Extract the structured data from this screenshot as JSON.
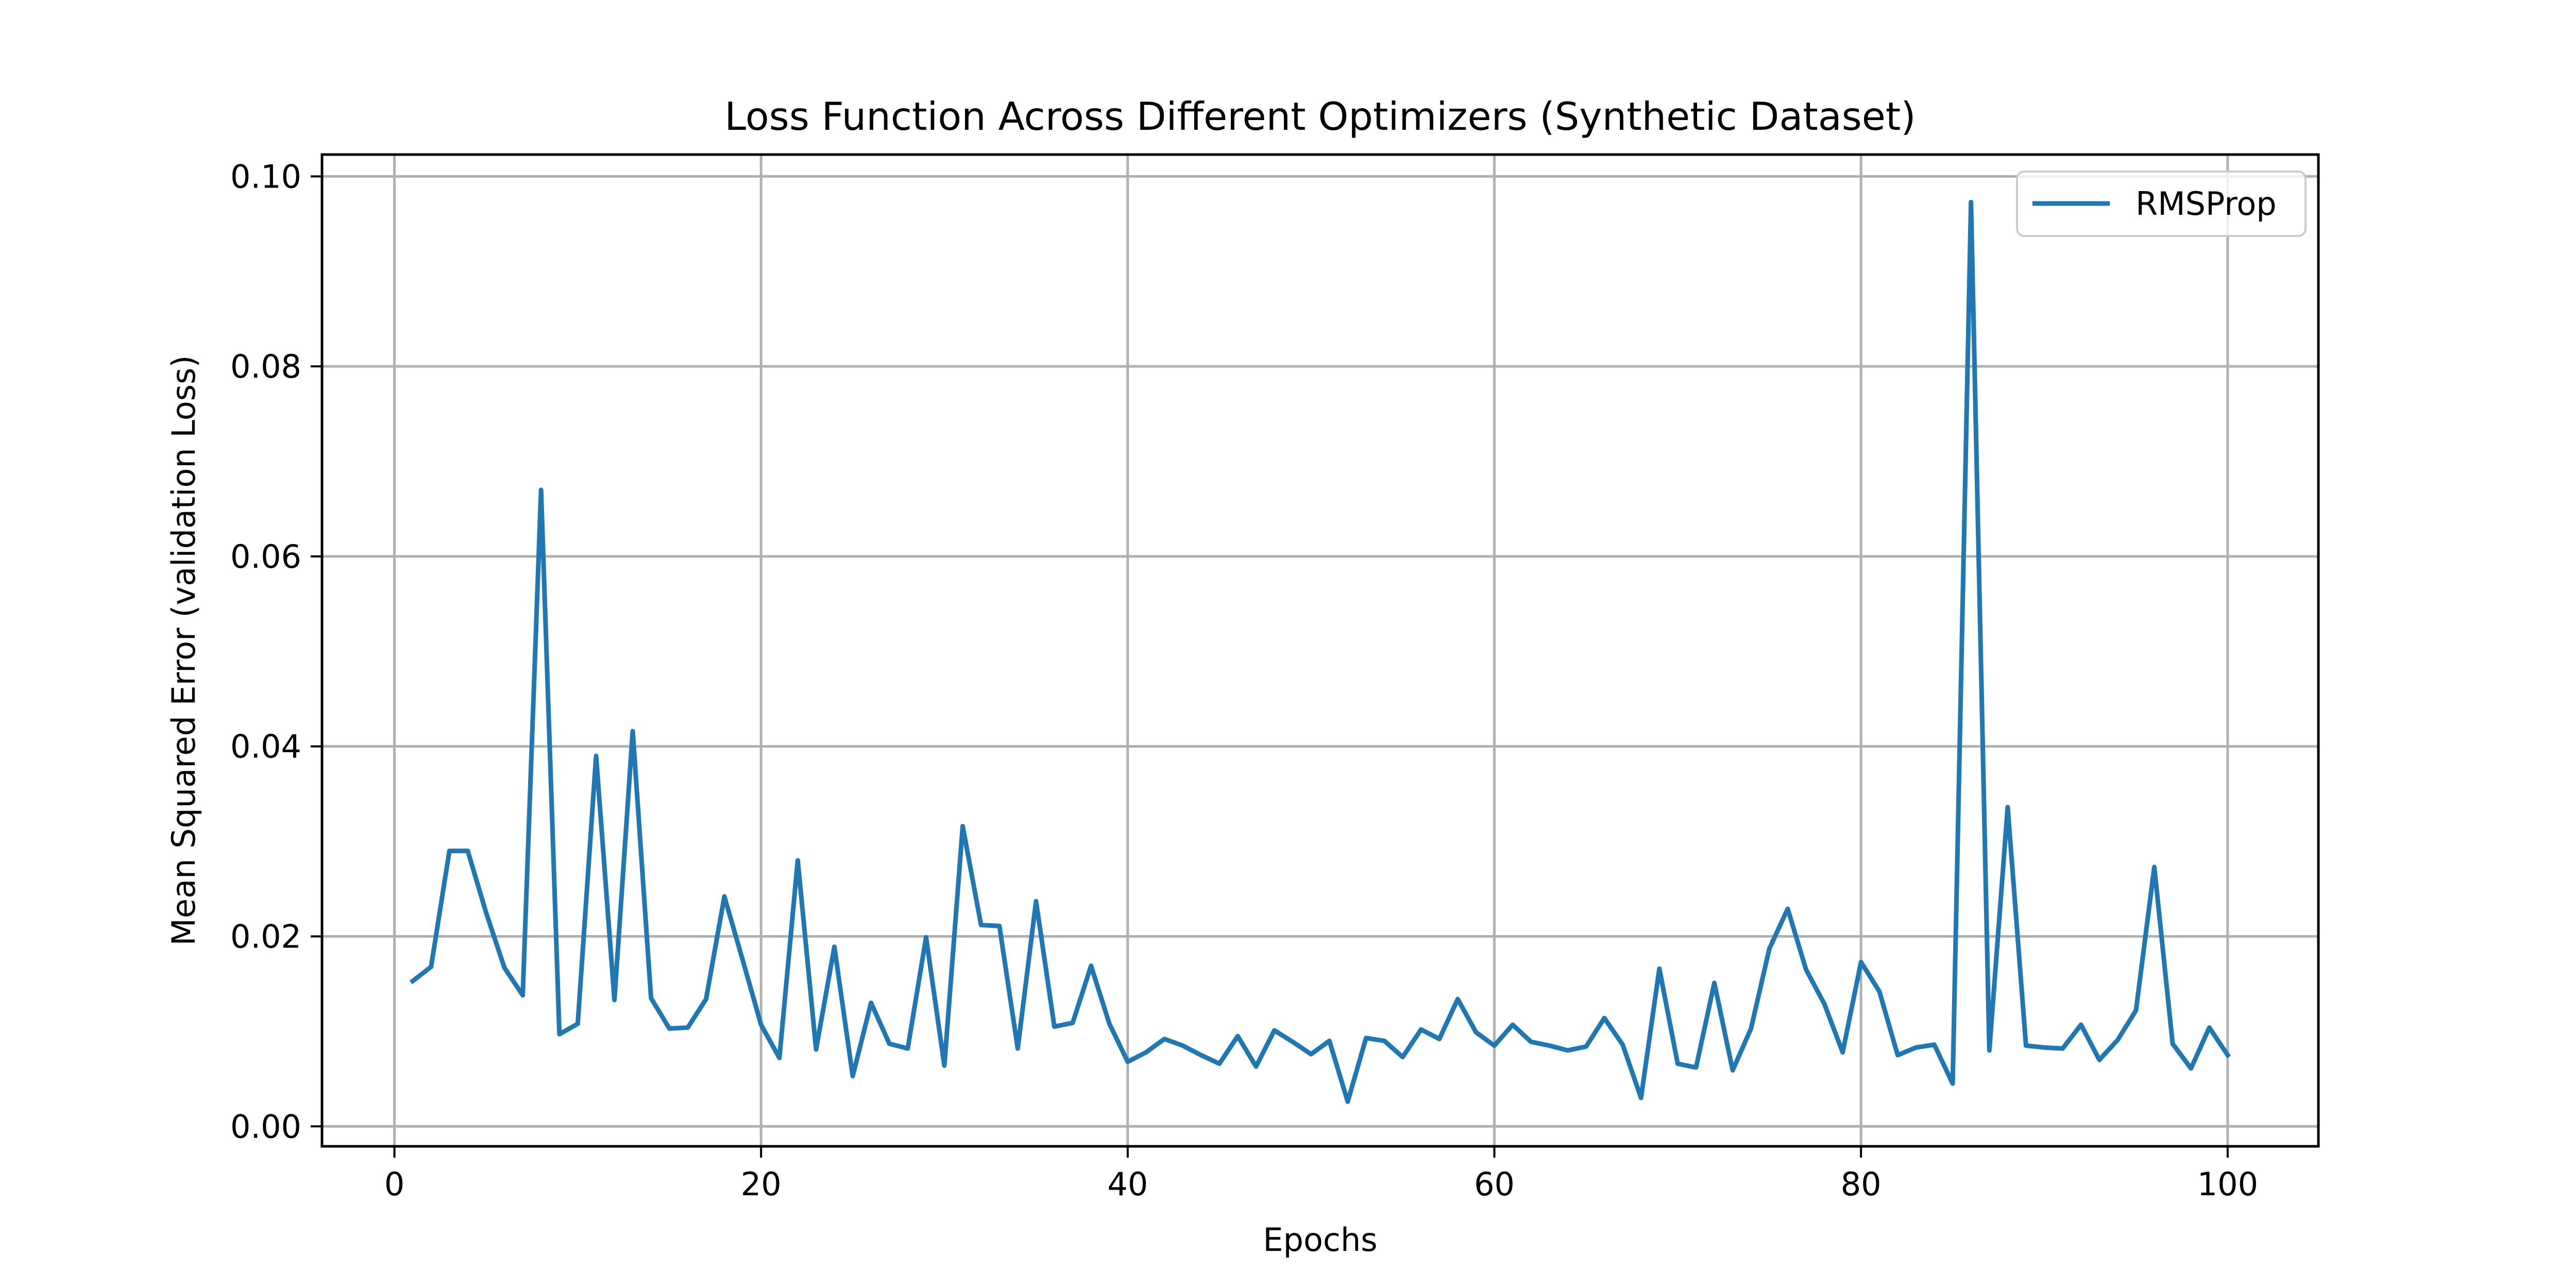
{
  "chart_data": {
    "type": "line",
    "title": "Loss Function Across Different Optimizers (Synthetic Dataset)",
    "xlabel": "Epochs",
    "ylabel": "Mean Squared Error (validation Loss)",
    "xlim": [
      -3.95,
      104.95
    ],
    "ylim": [
      -0.0021,
      0.1023
    ],
    "xticks": [
      0,
      20,
      40,
      60,
      80,
      100
    ],
    "xtick_labels": [
      "0",
      "20",
      "40",
      "60",
      "80",
      "100"
    ],
    "yticks": [
      0.0,
      0.02,
      0.04,
      0.06,
      0.08,
      0.1
    ],
    "ytick_labels": [
      "0.00",
      "0.02",
      "0.04",
      "0.06",
      "0.08",
      "0.10"
    ],
    "grid": true,
    "legend_position": "upper right",
    "series": [
      {
        "name": "RMSProp",
        "color": "#1f77b4",
        "x": [
          1,
          2,
          3,
          4,
          5,
          6,
          7,
          8,
          9,
          10,
          11,
          12,
          13,
          14,
          15,
          16,
          17,
          18,
          19,
          20,
          21,
          22,
          23,
          24,
          25,
          26,
          27,
          28,
          29,
          30,
          31,
          32,
          33,
          34,
          35,
          36,
          37,
          38,
          39,
          40,
          41,
          42,
          43,
          44,
          45,
          46,
          47,
          48,
          49,
          50,
          51,
          52,
          53,
          54,
          55,
          56,
          57,
          58,
          59,
          60,
          61,
          62,
          63,
          64,
          65,
          66,
          67,
          68,
          69,
          70,
          71,
          72,
          73,
          74,
          75,
          76,
          77,
          78,
          79,
          80,
          81,
          82,
          83,
          84,
          85,
          86,
          87,
          88,
          89,
          90,
          91,
          92,
          93,
          94,
          95,
          96,
          97,
          98,
          99,
          100
        ],
        "y": [
          0.0153,
          0.0168,
          0.029,
          0.029,
          0.0225,
          0.0167,
          0.0138,
          0.067,
          0.0097,
          0.0108,
          0.039,
          0.0133,
          0.0416,
          0.0135,
          0.0103,
          0.0104,
          0.0134,
          0.0242,
          0.0175,
          0.0107,
          0.0072,
          0.028,
          0.0081,
          0.0189,
          0.0053,
          0.013,
          0.0087,
          0.0082,
          0.0199,
          0.0064,
          0.0316,
          0.0212,
          0.0211,
          0.0082,
          0.0237,
          0.0105,
          0.0109,
          0.0169,
          0.0108,
          0.0068,
          0.0078,
          0.0092,
          0.0085,
          0.0075,
          0.0066,
          0.0095,
          0.0063,
          0.0101,
          0.0089,
          0.0076,
          0.009,
          0.0026,
          0.0093,
          0.009,
          0.0073,
          0.0102,
          0.0092,
          0.0134,
          0.0099,
          0.0085,
          0.0107,
          0.0089,
          0.0085,
          0.008,
          0.0084,
          0.0114,
          0.0086,
          0.003,
          0.0166,
          0.0066,
          0.0062,
          0.0151,
          0.0059,
          0.0103,
          0.0187,
          0.0229,
          0.0165,
          0.0129,
          0.0078,
          0.0173,
          0.0142,
          0.0075,
          0.0083,
          0.0086,
          0.0045,
          0.0973,
          0.008,
          0.0336,
          0.0085,
          0.0083,
          0.0082,
          0.0107,
          0.007,
          0.0091,
          0.0122,
          0.0273,
          0.0087,
          0.0061,
          0.0104,
          0.0075
        ]
      }
    ]
  }
}
